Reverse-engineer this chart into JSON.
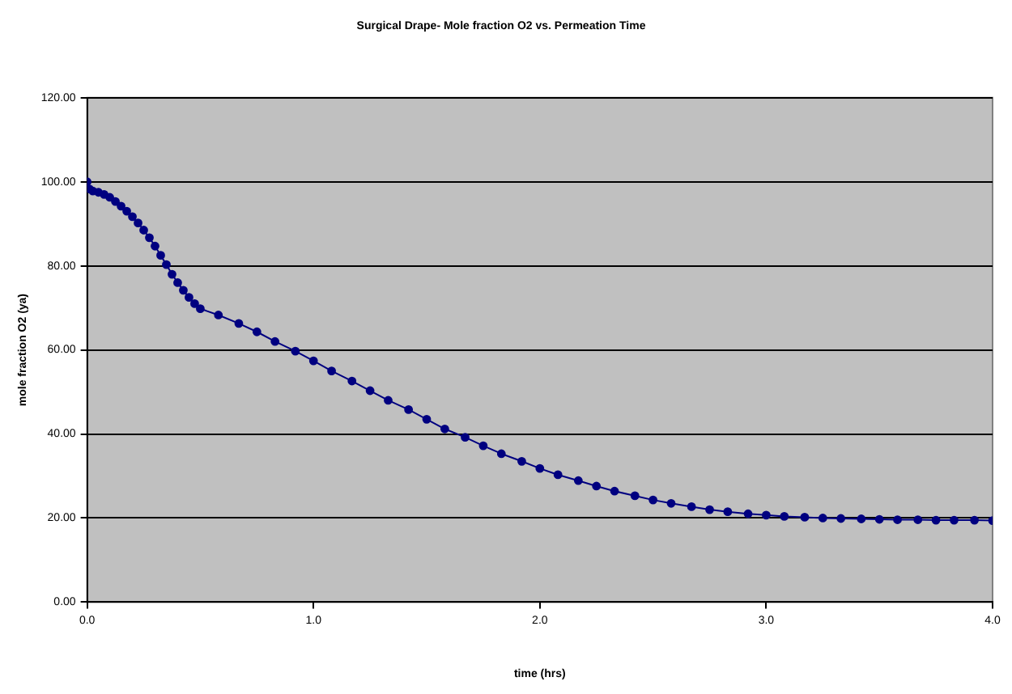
{
  "chart_data": {
    "type": "line",
    "title": "Surgical Drape- Mole fraction O2 vs. Permeation Time",
    "xlabel": "time (hrs)",
    "ylabel": "mole fraction O2 (ya)",
    "series": [
      {
        "color": "#000080",
        "x": [
          0,
          0.01,
          0.025,
          0.05,
          0.075,
          0.1,
          0.125,
          0.15,
          0.175,
          0.2,
          0.225,
          0.25,
          0.275,
          0.3,
          0.325,
          0.35,
          0.375,
          0.4,
          0.425,
          0.45,
          0.475,
          0.5,
          0.58,
          0.67,
          0.75,
          0.83,
          0.92,
          1.0,
          1.08,
          1.17,
          1.25,
          1.33,
          1.42,
          1.5,
          1.58,
          1.67,
          1.75,
          1.83,
          1.92,
          2.0,
          2.08,
          2.17,
          2.25,
          2.33,
          2.42,
          2.5,
          2.58,
          2.67,
          2.75,
          2.83,
          2.92,
          3.0,
          3.08,
          3.17,
          3.25,
          3.33,
          3.42,
          3.5,
          3.58,
          3.67,
          3.75,
          3.83,
          3.92,
          4.0
        ],
        "values": [
          100,
          98.3,
          97.8,
          97.5,
          97,
          96.3,
          95.3,
          94.2,
          93,
          91.7,
          90.2,
          88.5,
          86.7,
          84.7,
          82.5,
          80.3,
          78,
          76,
          74.2,
          72.5,
          71,
          69.8,
          68.3,
          66.3,
          64.3,
          62,
          59.7,
          57.4,
          55,
          52.6,
          50.3,
          48,
          45.8,
          43.5,
          41.2,
          39.2,
          37.2,
          35.3,
          33.5,
          31.8,
          30.3,
          28.9,
          27.6,
          26.4,
          25.3,
          24.3,
          23.5,
          22.7,
          22,
          21.5,
          21,
          20.7,
          20.4,
          20.2,
          20,
          19.9,
          19.8,
          19.7,
          19.6,
          19.6,
          19.5,
          19.5,
          19.5,
          19.4
        ]
      }
    ],
    "xlim": [
      0,
      4
    ],
    "xticks": [
      {
        "value": 0,
        "label": "0.0"
      },
      {
        "value": 1,
        "label": "1.0"
      },
      {
        "value": 2,
        "label": "2.0"
      },
      {
        "value": 3,
        "label": "3.0"
      },
      {
        "value": 4,
        "label": "4.0"
      }
    ],
    "ylim": [
      0,
      120
    ],
    "yticks": [
      {
        "value": 0,
        "label": "0.00"
      },
      {
        "value": 20,
        "label": "20.00"
      },
      {
        "value": 40,
        "label": "40.00"
      },
      {
        "value": 60,
        "label": "60.00"
      },
      {
        "value": 80,
        "label": "80.00"
      },
      {
        "value": 100,
        "label": "100.00"
      },
      {
        "value": 120,
        "label": "120.00"
      }
    ],
    "grid": "y",
    "legend": false,
    "marker": "circle",
    "line_style": "solid"
  }
}
